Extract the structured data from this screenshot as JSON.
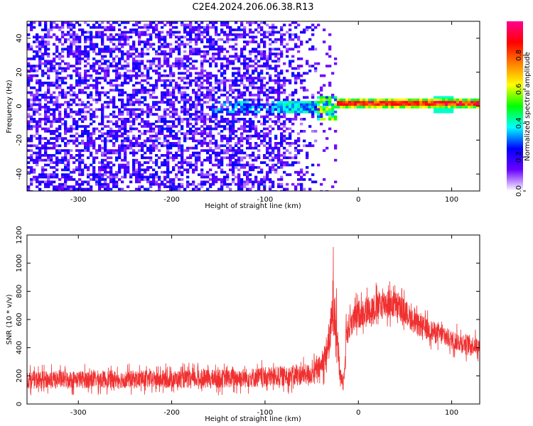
{
  "figure": {
    "title": "C2E4.2024.206.06.38.R13"
  },
  "chart_data": [
    {
      "type": "heatmap",
      "xlabel": "Height of straight line (km)",
      "ylabel": "Frequency (Hz)",
      "xlim": [
        -355,
        130
      ],
      "ylim": [
        -50,
        50
      ],
      "xticks": [
        -300,
        -200,
        -100,
        0,
        100
      ],
      "yticks": [
        -40,
        -20,
        0,
        20,
        40
      ],
      "colorbar": {
        "label": "Normalized spectral amplitude",
        "range": [
          0,
          1
        ],
        "ticks": [
          "0.0",
          "0.2",
          "0.4",
          "0.6",
          "0.8"
        ],
        "tick_values": [
          0,
          0.2,
          0.4,
          0.6,
          0.8
        ],
        "colors": [
          "#ffffff",
          "#6a00ff",
          "#0000ff",
          "#00ffff",
          "#00ff00",
          "#ffff00",
          "#ff8000",
          "#ff0000",
          "#ff0090"
        ]
      },
      "features": [
        {
          "name": "noise-region",
          "x_range": [
            -355,
            -45
          ],
          "freq_range": [
            -50,
            50
          ],
          "amplitude": 0.15
        },
        {
          "name": "transition",
          "x_range": [
            -45,
            -25
          ],
          "center_freq": 0,
          "amplitude": 0.5
        },
        {
          "name": "signal-band",
          "x_range": [
            -25,
            130
          ],
          "center_freq": 2,
          "amplitude": 0.85
        }
      ]
    },
    {
      "type": "line",
      "xlabel": "Height of straight line (km)",
      "ylabel": "SNR (10 * v/v)",
      "xlim": [
        -355,
        130
      ],
      "ylim": [
        0,
        1200
      ],
      "xticks": [
        -300,
        -200,
        -100,
        0,
        100
      ],
      "yticks": [
        0,
        200,
        400,
        600,
        800,
        1000,
        1200
      ],
      "color": "#f03030",
      "envelope_x": [
        -355,
        -300,
        -250,
        -200,
        -150,
        -100,
        -70,
        -50,
        -40,
        -35,
        -30,
        -27,
        -24,
        -20,
        -16,
        -13,
        -8,
        0,
        10,
        20,
        30,
        40,
        50,
        60,
        80,
        100,
        115,
        130
      ],
      "envelope_low": [
        60,
        60,
        60,
        60,
        60,
        60,
        70,
        80,
        110,
        150,
        230,
        300,
        250,
        100,
        40,
        300,
        400,
        450,
        480,
        500,
        520,
        520,
        500,
        430,
        380,
        330,
        300,
        300
      ],
      "envelope_high": [
        280,
        290,
        290,
        290,
        300,
        320,
        330,
        350,
        420,
        550,
        750,
        1150,
        1000,
        350,
        250,
        700,
        750,
        820,
        860,
        880,
        920,
        880,
        820,
        720,
        650,
        580,
        560,
        520
      ]
    }
  ]
}
